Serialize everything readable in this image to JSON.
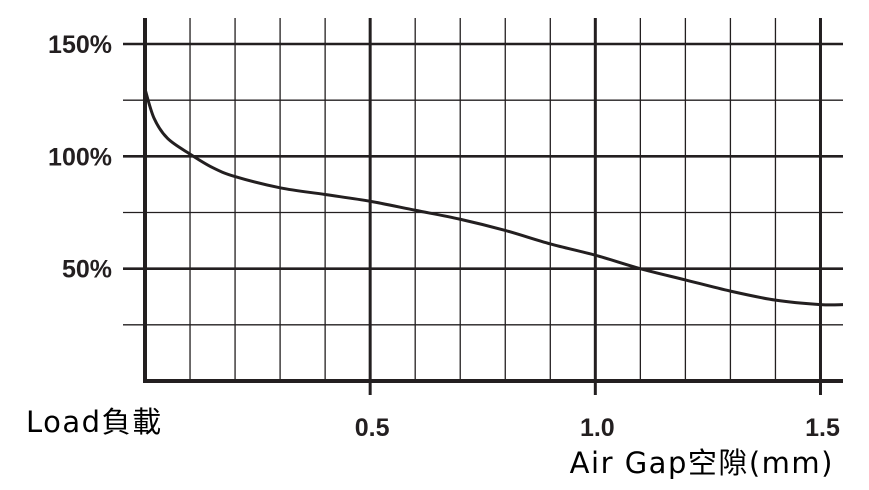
{
  "chart_data": {
    "type": "line",
    "title": "",
    "ylabel": "Load負載",
    "xlabel": "Air Gap空隙(mm)",
    "xlim": [
      0,
      1.55
    ],
    "ylim": [
      0,
      150
    ],
    "x_ticks": [
      0.5,
      1.0,
      1.5
    ],
    "x_tick_labels": [
      "0.5",
      "1.0",
      "1.5"
    ],
    "y_ticks": [
      50,
      100,
      150
    ],
    "y_tick_labels": [
      "50%",
      "100%",
      "150%"
    ],
    "x_gridlines": [
      0.1,
      0.2,
      0.3,
      0.4,
      0.5,
      0.6,
      0.7,
      0.8,
      0.9,
      1.0,
      1.1,
      1.2,
      1.3,
      1.4,
      1.5
    ],
    "y_gridlines": [
      25,
      50,
      75,
      100,
      125,
      150
    ],
    "grid": true,
    "series": [
      {
        "color": "#231f20",
        "x": [
          0.0,
          0.02,
          0.05,
          0.1,
          0.15,
          0.2,
          0.3,
          0.4,
          0.5,
          0.6,
          0.7,
          0.8,
          0.9,
          1.0,
          1.1,
          1.2,
          1.3,
          1.4,
          1.5,
          1.55
        ],
        "y": [
          130,
          117,
          108,
          101,
          95,
          91,
          86,
          83,
          80,
          76,
          72,
          67,
          61,
          56,
          50,
          45,
          40,
          36,
          34,
          34
        ]
      }
    ]
  },
  "colors": {
    "axis": "#231f20",
    "grid": "#231f20",
    "line": "#231f20",
    "background": "#ffffff"
  }
}
